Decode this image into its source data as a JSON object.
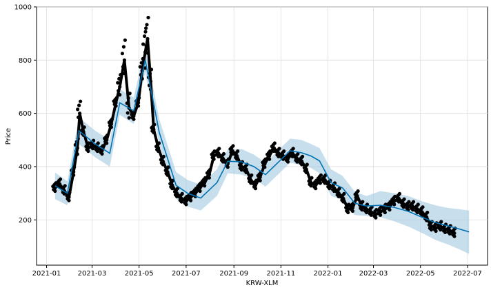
{
  "chart_data": {
    "type": "line",
    "title": "",
    "xlabel": "KRW-XLM",
    "ylabel": "Price",
    "ylim": [
      30,
      1000
    ],
    "xlim": [
      "2020-12-19",
      "2022-07-27"
    ],
    "grid": true,
    "colors": {
      "observed": "#000000",
      "forecast": "#0072B2",
      "interval": "#a9cce3",
      "grid": "#dddddd"
    },
    "x_ticks": [
      "2021-01",
      "2021-03",
      "2021-05",
      "2021-07",
      "2021-09",
      "2021-11",
      "2022-01",
      "2022-03",
      "2022-05",
      "2022-07"
    ],
    "y_ticks": [
      200,
      400,
      600,
      800,
      1000
    ],
    "series": [
      {
        "name": "",
        "role": "observed",
        "x": [
          "2021-01-12",
          "2021-01-18",
          "2021-01-24",
          "2021-01-30",
          "2021-02-05",
          "2021-02-10",
          "2021-02-13",
          "2021-02-18",
          "2021-02-24",
          "2021-03-02",
          "2021-03-08",
          "2021-03-14",
          "2021-03-20",
          "2021-03-26",
          "2021-04-01",
          "2021-04-06",
          "2021-04-12",
          "2021-04-18",
          "2021-04-24",
          "2021-04-30",
          "2021-05-05",
          "2021-05-09",
          "2021-05-12",
          "2021-05-16",
          "2021-05-20",
          "2021-05-26",
          "2021-06-01",
          "2021-06-07",
          "2021-06-13",
          "2021-06-19",
          "2021-06-25",
          "2021-07-01",
          "2021-07-07",
          "2021-07-13",
          "2021-07-19",
          "2021-07-25",
          "2021-07-31",
          "2021-08-06",
          "2021-08-12",
          "2021-08-18",
          "2021-08-24",
          "2021-08-30",
          "2021-09-05",
          "2021-09-11",
          "2021-09-17",
          "2021-09-23",
          "2021-09-29",
          "2021-10-05",
          "2021-10-11",
          "2021-10-17",
          "2021-10-23",
          "2021-10-29",
          "2021-11-04",
          "2021-11-10",
          "2021-11-16",
          "2021-11-22",
          "2021-11-28",
          "2021-12-04",
          "2021-12-10",
          "2021-12-16",
          "2021-12-22",
          "2021-12-28",
          "2022-01-03",
          "2022-01-09",
          "2022-01-15",
          "2022-01-21",
          "2022-01-27",
          "2022-02-02",
          "2022-02-08",
          "2022-02-14",
          "2022-02-20",
          "2022-02-26",
          "2022-03-04",
          "2022-03-10",
          "2022-03-16",
          "2022-03-22",
          "2022-03-28",
          "2022-04-03",
          "2022-04-09",
          "2022-04-15",
          "2022-04-21",
          "2022-04-27",
          "2022-05-03",
          "2022-05-09",
          "2022-05-15",
          "2022-05-21",
          "2022-05-27",
          "2022-06-02",
          "2022-06-08",
          "2022-06-14"
        ],
        "values": [
          320,
          335,
          310,
          285,
          380,
          470,
          600,
          530,
          470,
          480,
          470,
          460,
          500,
          560,
          640,
          700,
          800,
          620,
          590,
          640,
          760,
          830,
          880,
          720,
          540,
          470,
          420,
          380,
          330,
          300,
          280,
          270,
          285,
          300,
          320,
          340,
          370,
          440,
          450,
          430,
          410,
          460,
          440,
          400,
          390,
          350,
          330,
          360,
          410,
          440,
          470,
          450,
          440,
          430,
          450,
          430,
          420,
          390,
          340,
          330,
          350,
          350,
          330,
          320,
          300,
          280,
          240,
          245,
          290,
          250,
          240,
          230,
          220,
          230,
          240,
          250,
          270,
          280,
          260,
          250,
          250,
          240,
          230,
          210,
          175,
          170,
          175,
          165,
          160,
          150
        ]
      },
      {
        "name": "",
        "role": "forecast",
        "x": [
          "2021-01-12",
          "2021-01-28",
          "2021-02-12",
          "2021-03-05",
          "2021-03-24",
          "2021-04-06",
          "2021-04-24",
          "2021-05-09",
          "2021-05-27",
          "2021-06-18",
          "2021-07-03",
          "2021-07-20",
          "2021-08-10",
          "2021-08-24",
          "2021-09-11",
          "2021-09-27",
          "2021-10-12",
          "2021-10-28",
          "2021-11-13",
          "2021-11-28",
          "2021-12-10",
          "2021-12-21",
          "2022-01-05",
          "2022-01-20",
          "2022-02-05",
          "2022-02-20",
          "2022-03-10",
          "2022-03-28",
          "2022-04-15",
          "2022-05-05",
          "2022-05-20",
          "2022-06-05",
          "2022-06-20",
          "2022-07-03"
        ],
        "values": [
          328,
          300,
          535,
          485,
          450,
          640,
          610,
          800,
          530,
          330,
          300,
          282,
          340,
          420,
          418,
          400,
          370,
          415,
          460,
          452,
          440,
          422,
          340,
          320,
          262,
          252,
          255,
          247,
          232,
          208,
          190,
          178,
          166,
          155
        ],
        "lower": [
          278,
          255,
          485,
          435,
          400,
          595,
          560,
          755,
          485,
          280,
          250,
          235,
          290,
          375,
          370,
          355,
          325,
          370,
          415,
          405,
          395,
          375,
          290,
          275,
          218,
          215,
          210,
          195,
          175,
          148,
          125,
          108,
          90,
          72
        ],
        "upper": [
          378,
          345,
          585,
          535,
          500,
          690,
          660,
          850,
          580,
          380,
          350,
          332,
          390,
          465,
          466,
          445,
          415,
          460,
          505,
          500,
          485,
          470,
          390,
          365,
          305,
          290,
          308,
          300,
          290,
          268,
          255,
          245,
          240,
          235
        ]
      }
    ]
  }
}
